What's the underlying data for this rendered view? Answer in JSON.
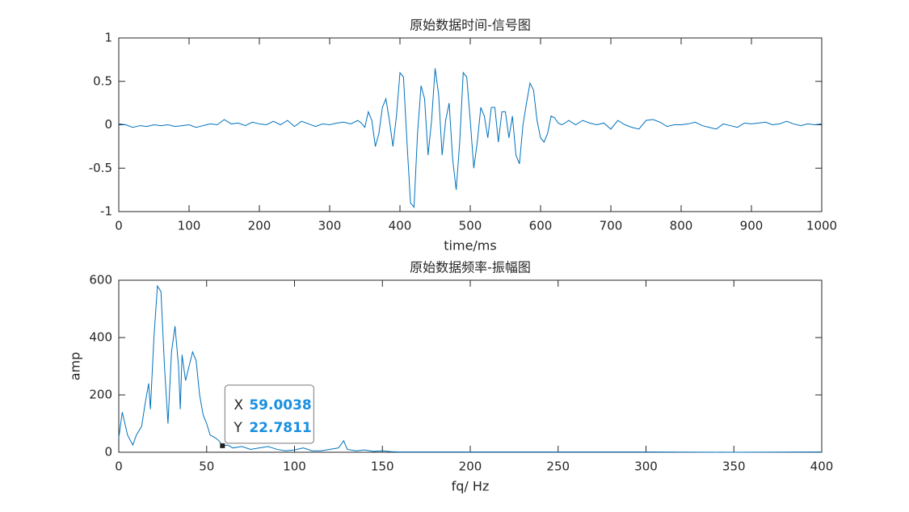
{
  "chart_data": [
    {
      "type": "line",
      "title": "原始数据时间-信号图",
      "x_label": "time/ms",
      "xlim": [
        0,
        1000
      ],
      "xticks": [
        0,
        100,
        200,
        300,
        400,
        500,
        600,
        700,
        800,
        900,
        1000
      ],
      "ylim": [
        -1,
        1
      ],
      "yticks": [
        -1,
        -0.5,
        0,
        0.5,
        1
      ],
      "series": [
        {
          "color": "#0072bd",
          "x": [
            0,
            10,
            20,
            30,
            40,
            50,
            60,
            70,
            80,
            90,
            100,
            110,
            120,
            130,
            140,
            150,
            160,
            170,
            180,
            190,
            200,
            210,
            220,
            230,
            240,
            250,
            260,
            270,
            280,
            290,
            300,
            310,
            320,
            330,
            340,
            345,
            350,
            355,
            360,
            365,
            370,
            375,
            380,
            385,
            390,
            395,
            400,
            405,
            410,
            415,
            420,
            425,
            430,
            435,
            440,
            445,
            450,
            455,
            460,
            465,
            470,
            475,
            480,
            485,
            490,
            495,
            500,
            505,
            510,
            515,
            520,
            525,
            530,
            535,
            540,
            545,
            550,
            555,
            560,
            565,
            570,
            575,
            580,
            585,
            590,
            595,
            600,
            605,
            610,
            615,
            620,
            625,
            630,
            635,
            640,
            650,
            660,
            670,
            680,
            690,
            700,
            710,
            720,
            730,
            740,
            750,
            760,
            770,
            780,
            790,
            800,
            810,
            820,
            830,
            840,
            850,
            860,
            870,
            880,
            890,
            900,
            910,
            920,
            930,
            940,
            950,
            960,
            970,
            980,
            990,
            1000
          ],
          "values": [
            0.01,
            0,
            -0.03,
            -0.01,
            -0.02,
            0,
            -0.01,
            0,
            -0.02,
            -0.01,
            0,
            -0.03,
            -0.01,
            0.01,
            0,
            0.06,
            0.01,
            0.02,
            -0.01,
            0.03,
            0.01,
            0,
            0.04,
            0,
            0.05,
            -0.02,
            0.04,
            0.01,
            -0.02,
            0.01,
            0,
            0.02,
            0.03,
            0.01,
            0.05,
            0.02,
            -0.03,
            0.15,
            0.05,
            -0.25,
            -0.1,
            0.2,
            0.3,
            0.05,
            -0.25,
            0.1,
            0.6,
            0.55,
            -0.2,
            -0.9,
            -0.95,
            -0.1,
            0.45,
            0.3,
            -0.35,
            0.05,
            0.65,
            0.35,
            -0.35,
            0.05,
            0.25,
            -0.4,
            -0.75,
            -0.2,
            0.6,
            0.55,
            0.05,
            -0.5,
            -0.2,
            0.2,
            0.1,
            -0.15,
            0.2,
            0.2,
            -0.2,
            0.15,
            0.15,
            -0.15,
            0.1,
            -0.35,
            -0.45,
            0,
            0.25,
            0.48,
            0.4,
            0.05,
            -0.15,
            -0.2,
            -0.1,
            0.1,
            0.08,
            0.02,
            0,
            0.02,
            0.05,
            0,
            0.05,
            0.02,
            0,
            0.02,
            -0.05,
            0.05,
            0,
            -0.03,
            -0.05,
            0.05,
            0.06,
            0.03,
            -0.02,
            0,
            0,
            0.01,
            0.03,
            -0.01,
            -0.03,
            -0.05,
            0.01,
            -0.01,
            -0.03,
            0.02,
            0.01,
            0.02,
            0.03,
            0,
            0.01,
            0.04,
            0.01,
            -0.01,
            0.01,
            0,
            0.01
          ]
        }
      ]
    },
    {
      "type": "line",
      "title": "原始数据频率-振幅图",
      "x_label": "fq/ Hz",
      "y_label": "amp",
      "xlim": [
        0,
        400
      ],
      "xticks": [
        0,
        50,
        100,
        150,
        200,
        250,
        300,
        350,
        400
      ],
      "ylim": [
        0,
        600
      ],
      "yticks": [
        0,
        200,
        400,
        600
      ],
      "series": [
        {
          "color": "#0072bd",
          "x": [
            0,
            2,
            5,
            8,
            10,
            13,
            15,
            17,
            18,
            20,
            22,
            24,
            26,
            28,
            30,
            32,
            34,
            35,
            36,
            38,
            40,
            42,
            44,
            46,
            48,
            50,
            52,
            55,
            57,
            59,
            62,
            65,
            70,
            75,
            80,
            85,
            90,
            95,
            100,
            105,
            110,
            115,
            120,
            125,
            128,
            130,
            135,
            140,
            145,
            150,
            155,
            160,
            200,
            250,
            300,
            350,
            400
          ],
          "values": [
            50,
            140,
            60,
            25,
            60,
            90,
            170,
            240,
            150,
            400,
            580,
            560,
            300,
            100,
            350,
            440,
            300,
            150,
            340,
            250,
            300,
            350,
            320,
            200,
            130,
            100,
            60,
            50,
            40,
            22.78,
            25,
            15,
            20,
            10,
            15,
            20,
            10,
            5,
            8,
            15,
            5,
            5,
            10,
            15,
            40,
            10,
            5,
            8,
            3,
            5,
            2,
            1,
            1,
            1,
            1,
            0,
            1
          ]
        }
      ],
      "datatip": {
        "x_label": "X",
        "x": 59.0038,
        "y_label": "Y",
        "y": 22.7811
      }
    }
  ]
}
